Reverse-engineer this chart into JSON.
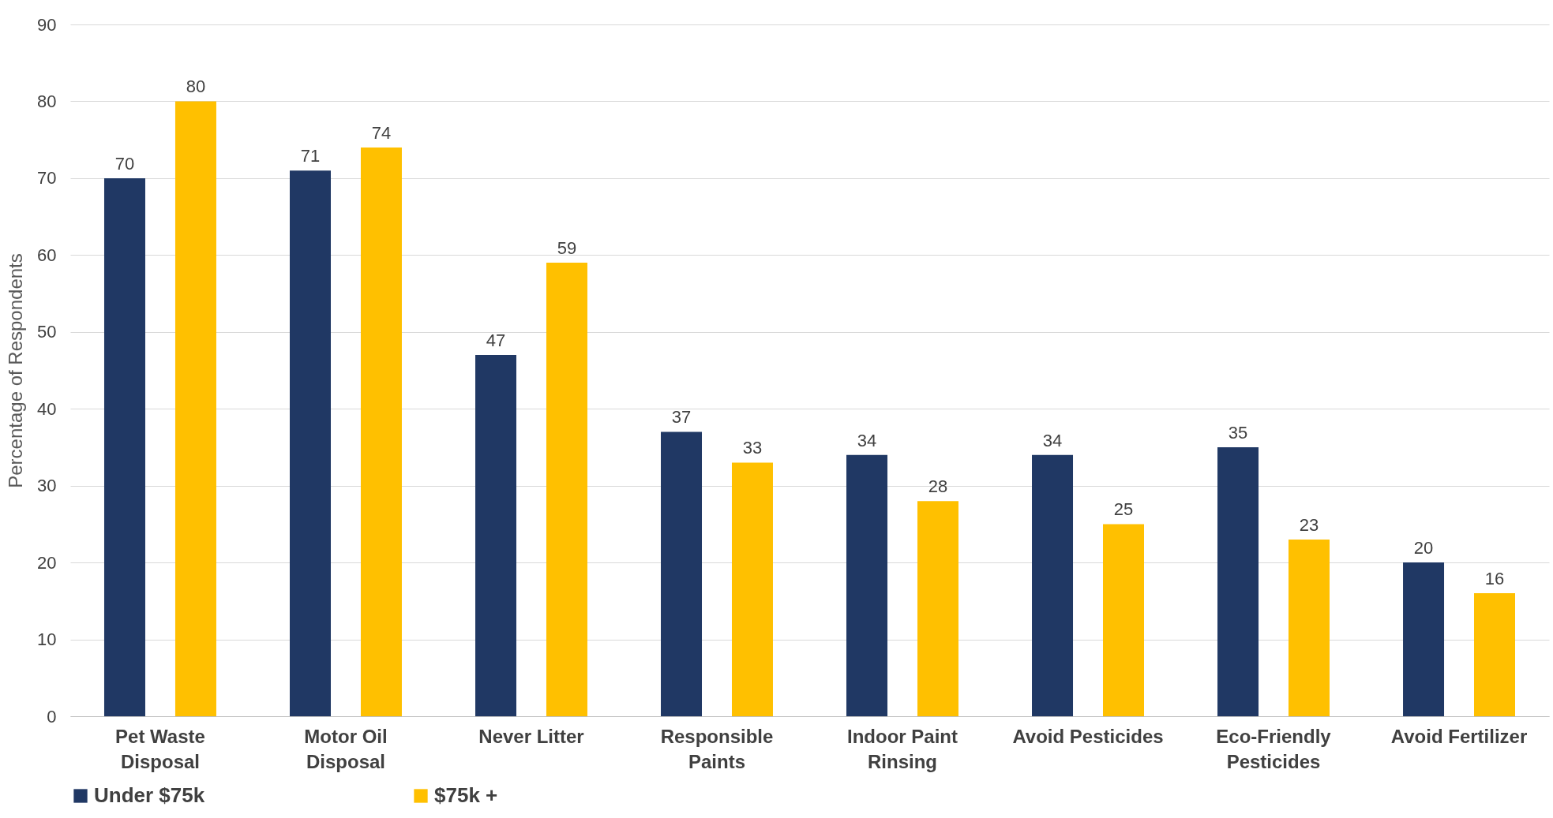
{
  "chart_data": {
    "type": "bar",
    "ylabel": "Percentage of Respondents",
    "categories": [
      "Pet Waste Disposal",
      "Motor Oil Disposal",
      "Never Litter",
      "Responsible Paints",
      "Indoor Paint Rinsing",
      "Avoid Pesticides",
      "Eco-Friendly Pesticides",
      "Avoid Fertilizer"
    ],
    "series": [
      {
        "name": "Under $75k",
        "color": "#203864",
        "values": [
          70,
          71,
          47,
          37,
          34,
          34,
          35,
          20
        ]
      },
      {
        "name": "$75k +",
        "color": "#ffc000",
        "values": [
          80,
          74,
          59,
          33,
          28,
          25,
          23,
          16
        ]
      }
    ],
    "ylim": [
      0,
      90
    ],
    "yticks": [
      0,
      10,
      20,
      30,
      40,
      50,
      60,
      70,
      80,
      90
    ],
    "grid": "y",
    "legend": "bottom",
    "data_labels": true
  }
}
